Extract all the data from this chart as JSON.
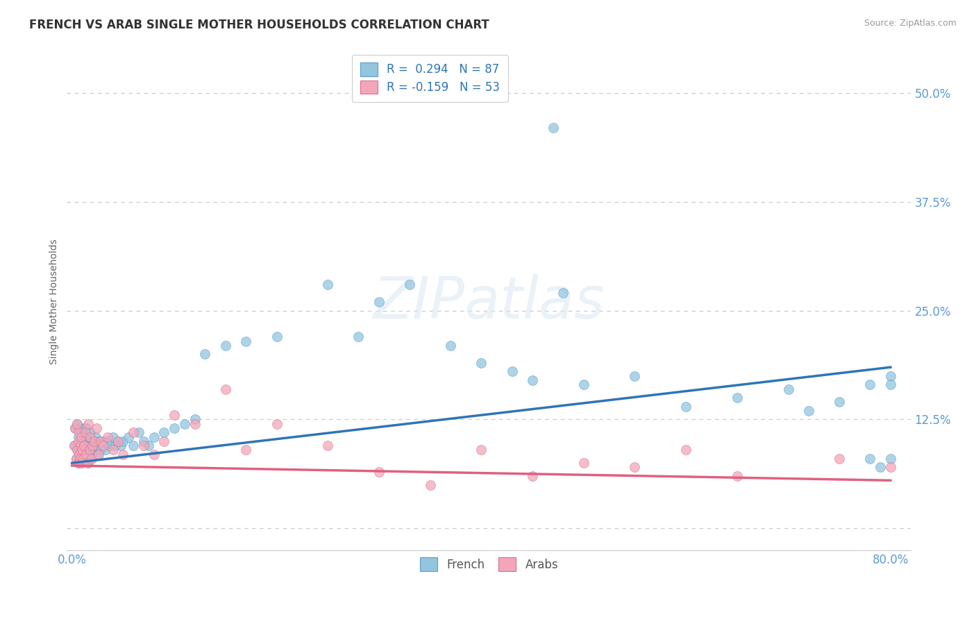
{
  "title": "FRENCH VS ARAB SINGLE MOTHER HOUSEHOLDS CORRELATION CHART",
  "source": "Source: ZipAtlas.com",
  "ylabel": "Single Mother Households",
  "xlim": [
    -0.005,
    0.82
  ],
  "ylim": [
    -0.025,
    0.545
  ],
  "yticks": [
    0.0,
    0.125,
    0.25,
    0.375,
    0.5
  ],
  "ytick_labels": [
    "",
    "12.5%",
    "25.0%",
    "37.5%",
    "50.0%"
  ],
  "xtick_labels_show": [
    "0.0%",
    "80.0%"
  ],
  "xtick_positions_show": [
    0.0,
    0.8
  ],
  "french_R": 0.294,
  "french_N": 87,
  "arab_R": -0.159,
  "arab_N": 53,
  "french_color": "#92c5de",
  "french_edge_color": "#5b9bd5",
  "arab_color": "#f4a6b8",
  "arab_edge_color": "#d47090",
  "french_line_color": "#2e75b6",
  "arab_line_color": "#e06080",
  "legend_french": "French",
  "legend_arab": "Arabs",
  "watermark": "ZIPatlas",
  "title_fontsize": 12,
  "tick_label_color": "#5b9bd5",
  "grid_color": "#c8c8c8",
  "background_color": "#ffffff",
  "marker_size": 100,
  "french_line_start_y": 0.075,
  "french_line_end_y": 0.185,
  "arab_line_start_y": 0.072,
  "arab_line_end_y": 0.055,
  "french_x": [
    0.002,
    0.003,
    0.004,
    0.005,
    0.005,
    0.006,
    0.006,
    0.007,
    0.007,
    0.008,
    0.008,
    0.009,
    0.009,
    0.01,
    0.01,
    0.011,
    0.011,
    0.012,
    0.012,
    0.013,
    0.013,
    0.014,
    0.014,
    0.015,
    0.015,
    0.016,
    0.016,
    0.017,
    0.018,
    0.018,
    0.019,
    0.02,
    0.021,
    0.022,
    0.023,
    0.024,
    0.025,
    0.026,
    0.027,
    0.028,
    0.03,
    0.031,
    0.033,
    0.035,
    0.037,
    0.04,
    0.042,
    0.045,
    0.048,
    0.05,
    0.055,
    0.06,
    0.065,
    0.07,
    0.075,
    0.08,
    0.09,
    0.1,
    0.11,
    0.12,
    0.13,
    0.15,
    0.17,
    0.2,
    0.25,
    0.28,
    0.3,
    0.33,
    0.37,
    0.4,
    0.43,
    0.45,
    0.47,
    0.48,
    0.5,
    0.55,
    0.6,
    0.65,
    0.7,
    0.72,
    0.75,
    0.78,
    0.78,
    0.79,
    0.8,
    0.8,
    0.8
  ],
  "french_y": [
    0.095,
    0.115,
    0.08,
    0.09,
    0.12,
    0.075,
    0.105,
    0.09,
    0.115,
    0.08,
    0.1,
    0.075,
    0.095,
    0.09,
    0.11,
    0.085,
    0.1,
    0.095,
    0.115,
    0.08,
    0.105,
    0.09,
    0.115,
    0.085,
    0.1,
    0.075,
    0.095,
    0.105,
    0.09,
    0.11,
    0.095,
    0.085,
    0.1,
    0.09,
    0.105,
    0.095,
    0.085,
    0.1,
    0.095,
    0.09,
    0.095,
    0.1,
    0.09,
    0.1,
    0.095,
    0.105,
    0.095,
    0.1,
    0.095,
    0.1,
    0.105,
    0.095,
    0.11,
    0.1,
    0.095,
    0.105,
    0.11,
    0.115,
    0.12,
    0.125,
    0.2,
    0.21,
    0.215,
    0.22,
    0.28,
    0.22,
    0.26,
    0.28,
    0.21,
    0.19,
    0.18,
    0.17,
    0.46,
    0.27,
    0.165,
    0.175,
    0.14,
    0.15,
    0.16,
    0.135,
    0.145,
    0.165,
    0.08,
    0.07,
    0.175,
    0.165,
    0.08
  ],
  "arab_x": [
    0.002,
    0.003,
    0.004,
    0.005,
    0.005,
    0.006,
    0.006,
    0.007,
    0.007,
    0.008,
    0.008,
    0.009,
    0.009,
    0.01,
    0.011,
    0.012,
    0.013,
    0.014,
    0.015,
    0.016,
    0.017,
    0.018,
    0.019,
    0.02,
    0.022,
    0.024,
    0.026,
    0.028,
    0.03,
    0.035,
    0.04,
    0.045,
    0.05,
    0.06,
    0.07,
    0.08,
    0.09,
    0.1,
    0.12,
    0.15,
    0.17,
    0.2,
    0.25,
    0.3,
    0.35,
    0.4,
    0.45,
    0.5,
    0.55,
    0.6,
    0.65,
    0.75,
    0.8
  ],
  "arab_y": [
    0.095,
    0.115,
    0.08,
    0.09,
    0.12,
    0.075,
    0.1,
    0.085,
    0.11,
    0.08,
    0.095,
    0.075,
    0.105,
    0.09,
    0.08,
    0.095,
    0.11,
    0.085,
    0.075,
    0.12,
    0.09,
    0.105,
    0.08,
    0.095,
    0.1,
    0.115,
    0.085,
    0.1,
    0.095,
    0.105,
    0.09,
    0.1,
    0.085,
    0.11,
    0.095,
    0.085,
    0.1,
    0.13,
    0.12,
    0.16,
    0.09,
    0.12,
    0.095,
    0.065,
    0.05,
    0.09,
    0.06,
    0.075,
    0.07,
    0.09,
    0.06,
    0.08,
    0.07
  ]
}
